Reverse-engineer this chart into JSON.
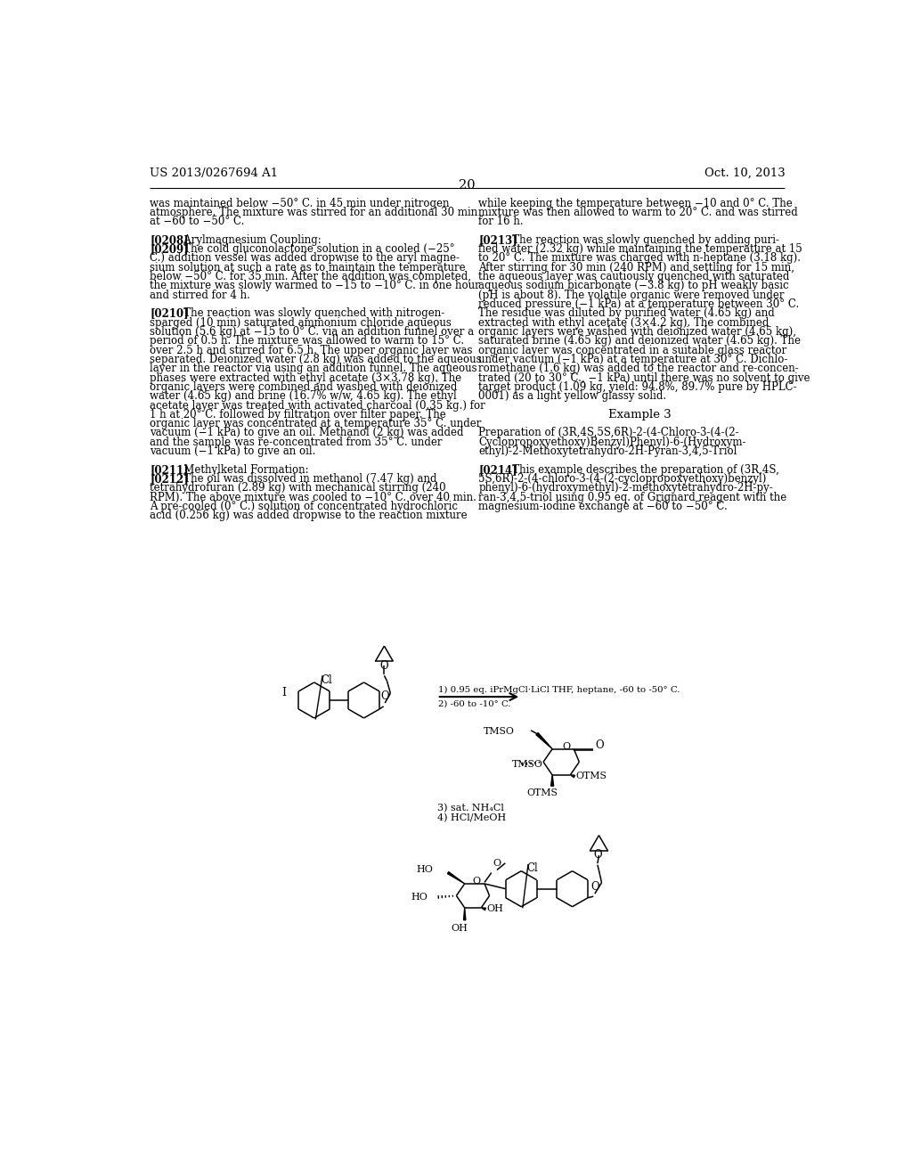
{
  "page_number": "20",
  "patent_number": "US 2013/0267694 A1",
  "patent_date": "Oct. 10, 2013",
  "background_color": "#ffffff",
  "left_column_text": [
    "was maintained below −50° C. in 45 min under nitrogen",
    "atmosphere. The mixture was stirred for an additional 30 min",
    "at −60 to −50° C.",
    "",
    "[0208]   Arylmagnesium Coupling:",
    "[0209]   The cold gluconolactone solution in a cooled (−25°",
    "C.) addition vessel was added dropwise to the aryl magne-",
    "sium solution at such a rate as to maintain the temperature",
    "below −50° C. for 35 min. After the addition was completed,",
    "the mixture was slowly warmed to −15 to −10° C. in one hour",
    "and stirred for 4 h.",
    "",
    "[0210]   The reaction was slowly quenched with nitrogen-",
    "sparged (10 min) saturated ammonium chloride aqueous",
    "solution (5.6 kg) at −15 to 0° C. via an addition funnel over a",
    "period of 0.5 h. The mixture was allowed to warm to 15° C.",
    "over 2.5 h and stirred for 6.5 h. The upper organic layer was",
    "separated. Deionized water (2.8 kg) was added to the aqueous",
    "layer in the reactor via using an addition funnel. The aqueous",
    "phases were extracted with ethyl acetate (3×3.78 kg). The",
    "organic layers were combined and washed with deionized",
    "water (4.65 kg) and brine (16.7% w/w, 4.65 kg). The ethyl",
    "acetate layer was treated with activated charcoal (0.35 kg.) for",
    "1 h at 20° C. followed by filtration over filter paper. The",
    "organic layer was concentrated at a temperature 35° C. under",
    "vacuum (−1 kPa) to give an oil. Methanol (2 kg) was added",
    "and the sample was re-concentrated from 35° C. under",
    "vacuum (−1 kPa) to give an oil.",
    "",
    "[0211]   Methylketal Formation:",
    "[0212]   The oil was dissolved in methanol (7.47 kg) and",
    "tetrahydrofuran (2.89 kg) with mechanical stirring (240",
    "RPM). The above mixture was cooled to −10° C. over 40 min.",
    "A pre-cooled (0° C.) solution of concentrated hydrochloric",
    "acid (0.256 kg) was added dropwise to the reaction mixture"
  ],
  "right_column_text": [
    "while keeping the temperature between −10 and 0° C. The",
    "mixture was then allowed to warm to 20° C. and was stirred",
    "for 16 h.",
    "",
    "[0213]   The reaction was slowly quenched by adding puri-",
    "fied water (2.32 kg) while maintaining the temperature at 15",
    "to 20° C. The mixture was charged with n-heptane (3.18 kg).",
    "After stirring for 30 min (240 RPM) and settling for 15 min,",
    "the aqueous layer was cautiously quenched with saturated",
    "aqueous sodium bicarbonate (−3.8 kg) to pH weakly basic",
    "(pH is about 8). The volatile organic were removed under",
    "reduced pressure (−1 kPa) at a temperature between 30° C.",
    "The residue was diluted by purified water (4.65 kg) and",
    "extracted with ethyl acetate (3×4.2 kg). The combined",
    "organic layers were washed with deionized water (4.65 kg),",
    "saturated brine (4.65 kg) and deionized water (4.65 kg). The",
    "organic layer was concentrated in a suitable glass reactor",
    "under vacuum (−1 kPa) at a temperature at 30° C. Dichlo-",
    "romethane (1.6 kg) was added to the reactor and re-concen-",
    "trated (20 to 30° C., −1 kPa) until there was no solvent to give",
    "target product (1.09 kg, yield: 94.8%, 89.7% pure by HPLC-",
    "0001) as a light yellow glassy solid.",
    "",
    "Example 3",
    "",
    "Preparation of (3R,4S,5S,6R)-2-(4-Chloro-3-(4-(2-",
    "Cyclopropoxyethoxy)Benzyl)Phenyl)-6-(Hydroxym-",
    "ethyl)-2-Methoxytetrahydro-2H-Pyran-3,4,5-Triol",
    "",
    "[0214]   This example describes the preparation of (3R,4S,",
    "5S,6R)-2-(4-chloro-3-(4-(2-cyclopropoxyethoxy)benzyl)",
    "phenyl)-6-(hydroxymethyl)-2-methoxytetrahydro-2H-py-",
    "ran-3,4,5-triol using 0.95 eq. of Grignard reagent with the",
    "magnesium-iodine exchange at −60 to −50° C."
  ],
  "bold_tags": [
    "[0208]",
    "[0209]",
    "[0210]",
    "[0211]",
    "[0212]",
    "[0213]",
    "[0214]"
  ]
}
